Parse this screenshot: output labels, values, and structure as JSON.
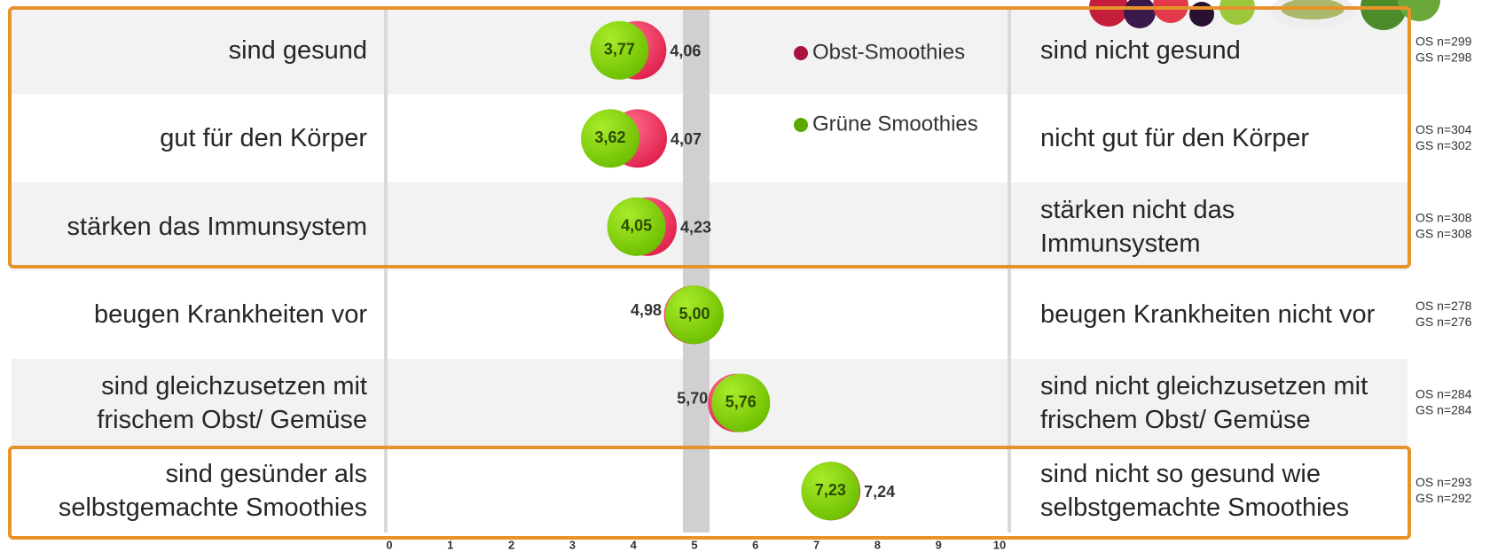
{
  "chart_data": {
    "type": "dot",
    "categories": [
      "sind gesund",
      "gut für den Körper",
      "stärken das Immunsystem",
      "beugen Krankheiten vor",
      "sind gleichzusetzen mit\nfrischem Obst/ Gemüse",
      "sind gesünder als\nselbstgemachte Smoothies"
    ],
    "right_labels": [
      "sind nicht gesund",
      "nicht gut für den Körper",
      "stärken nicht das\nImmunsystem",
      "beugen Krankheiten nicht vor",
      "sind nicht gleichzusetzen mit\nfrischem Obst/ Gemüse",
      "sind nicht so gesund wie\nselbstgemachte Smoothies"
    ],
    "series": [
      {
        "name": "Obst-Smoothies",
        "color": "#f0305a",
        "legend_color": "#a8123e",
        "values": [
          4.06,
          4.07,
          4.23,
          4.98,
          5.7,
          7.24
        ],
        "value_labels": [
          "4,06",
          "4,07",
          "4,23",
          "4,98",
          "5,70",
          "7,24"
        ],
        "n_labels": [
          "OS n=299",
          "OS n=304",
          "OS n=308",
          "OS n=278",
          "OS n=284",
          "OS n=293"
        ]
      },
      {
        "name": "Grüne Smoothies",
        "color": "#84d200",
        "legend_color": "#5aa800",
        "values": [
          3.77,
          3.62,
          4.05,
          5.0,
          5.76,
          7.23
        ],
        "value_labels": [
          "3,77",
          "3,62",
          "4,05",
          "5,00",
          "5,76",
          "7,23"
        ],
        "n_labels": [
          "GS n=298",
          "GS n=302",
          "GS n=308",
          "GS n=276",
          "GS n=284",
          "GS n=292"
        ]
      }
    ],
    "xlim": [
      0,
      10
    ],
    "xticks": [
      0,
      1,
      2,
      3,
      4,
      5,
      6,
      7,
      8,
      9,
      10
    ]
  }
}
